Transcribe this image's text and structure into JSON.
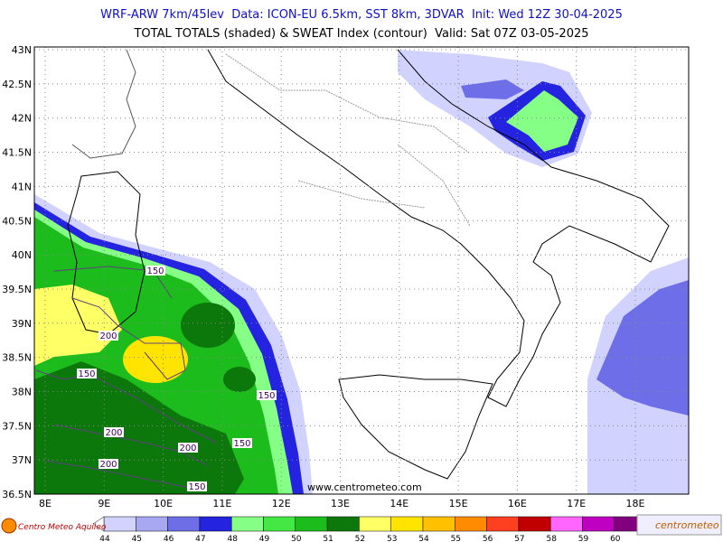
{
  "header": {
    "line1": "WRF-ARW 7km/45lev  Data: ICON-EU 6.5km, SST 8km, 3DVAR  Init: Wed 12Z 30-04-2025",
    "line2": "TOTAL TOTALS (shaded) & SWEAT Index (contour)  Valid: Sat 07Z 03-05-2025"
  },
  "map": {
    "lon_labels": [
      "8E",
      "9E",
      "10E",
      "11E",
      "12E",
      "13E",
      "14E",
      "15E",
      "16E",
      "17E",
      "18E"
    ],
    "lat_labels": [
      "43N",
      "42.5N",
      "42N",
      "41.5N",
      "41N",
      "40.5N",
      "40N",
      "39.5N",
      "39N",
      "38.5N",
      "38N",
      "37.5N",
      "37N",
      "36.5N"
    ],
    "contour_labels": [
      "150",
      "200",
      "150",
      "150",
      "200",
      "200",
      "150",
      "200",
      "150"
    ],
    "watermark": "www.centrometeo.com"
  },
  "colorbar": {
    "levels": [
      {
        "label": "44",
        "color": "#d2d2ff"
      },
      {
        "label": "45",
        "color": "#a8a8f2"
      },
      {
        "label": "46",
        "color": "#6e6ee8"
      },
      {
        "label": "47",
        "color": "#2424e0"
      },
      {
        "label": "48",
        "color": "#86ff86"
      },
      {
        "label": "49",
        "color": "#44e844"
      },
      {
        "label": "50",
        "color": "#1cbc1c"
      },
      {
        "label": "51",
        "color": "#0c780c"
      },
      {
        "label": "52",
        "color": "#ffff66"
      },
      {
        "label": "53",
        "color": "#ffe400"
      },
      {
        "label": "54",
        "color": "#ffc000"
      },
      {
        "label": "55",
        "color": "#ff8c00"
      },
      {
        "label": "56",
        "color": "#ff4020"
      },
      {
        "label": "57",
        "color": "#c00000"
      },
      {
        "label": "58",
        "color": "#ff66ff"
      },
      {
        "label": "59",
        "color": "#c000c0"
      },
      {
        "label": "60",
        "color": "#800080"
      }
    ]
  },
  "footer": {
    "left_logo": "Centro Meteo Aquileo",
    "right_logo": "centrometeo"
  }
}
